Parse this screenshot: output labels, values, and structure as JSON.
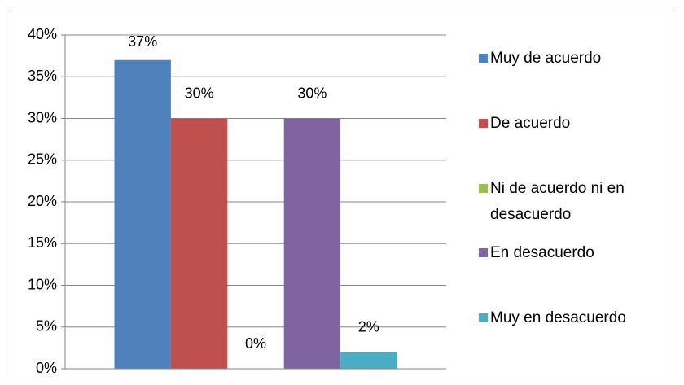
{
  "chart_data": {
    "type": "bar",
    "categories": [
      null
    ],
    "series": [
      {
        "name": "Muy de acuerdo",
        "color": "#4f81bd",
        "values": [
          37
        ],
        "value_labels": [
          "37%"
        ]
      },
      {
        "name": "De acuerdo",
        "color": "#c0504d",
        "values": [
          30
        ],
        "value_labels": [
          "30%"
        ]
      },
      {
        "name": "Ni de acuerdo ni en desacuerdo",
        "color": "#9bbb59",
        "values": [
          0
        ],
        "value_labels": [
          "0%"
        ]
      },
      {
        "name": "En desacuerdo",
        "color": "#8064a2",
        "values": [
          30
        ],
        "value_labels": [
          "30%"
        ]
      },
      {
        "name": "Muy en desacuerdo",
        "color": "#4bacc6",
        "values": [
          2
        ],
        "value_labels": [
          "2%"
        ]
      }
    ],
    "ylim": [
      0,
      40
    ],
    "yticks": [
      {
        "value": 0,
        "label": "0%"
      },
      {
        "value": 5,
        "label": "5%"
      },
      {
        "value": 10,
        "label": "10%"
      },
      {
        "value": 15,
        "label": "15%"
      },
      {
        "value": 20,
        "label": "20%"
      },
      {
        "value": 25,
        "label": "25%"
      },
      {
        "value": 30,
        "label": "30%"
      },
      {
        "value": 35,
        "label": "35%"
      },
      {
        "value": 40,
        "label": "40%"
      }
    ],
    "grid": true,
    "legend": "right"
  }
}
